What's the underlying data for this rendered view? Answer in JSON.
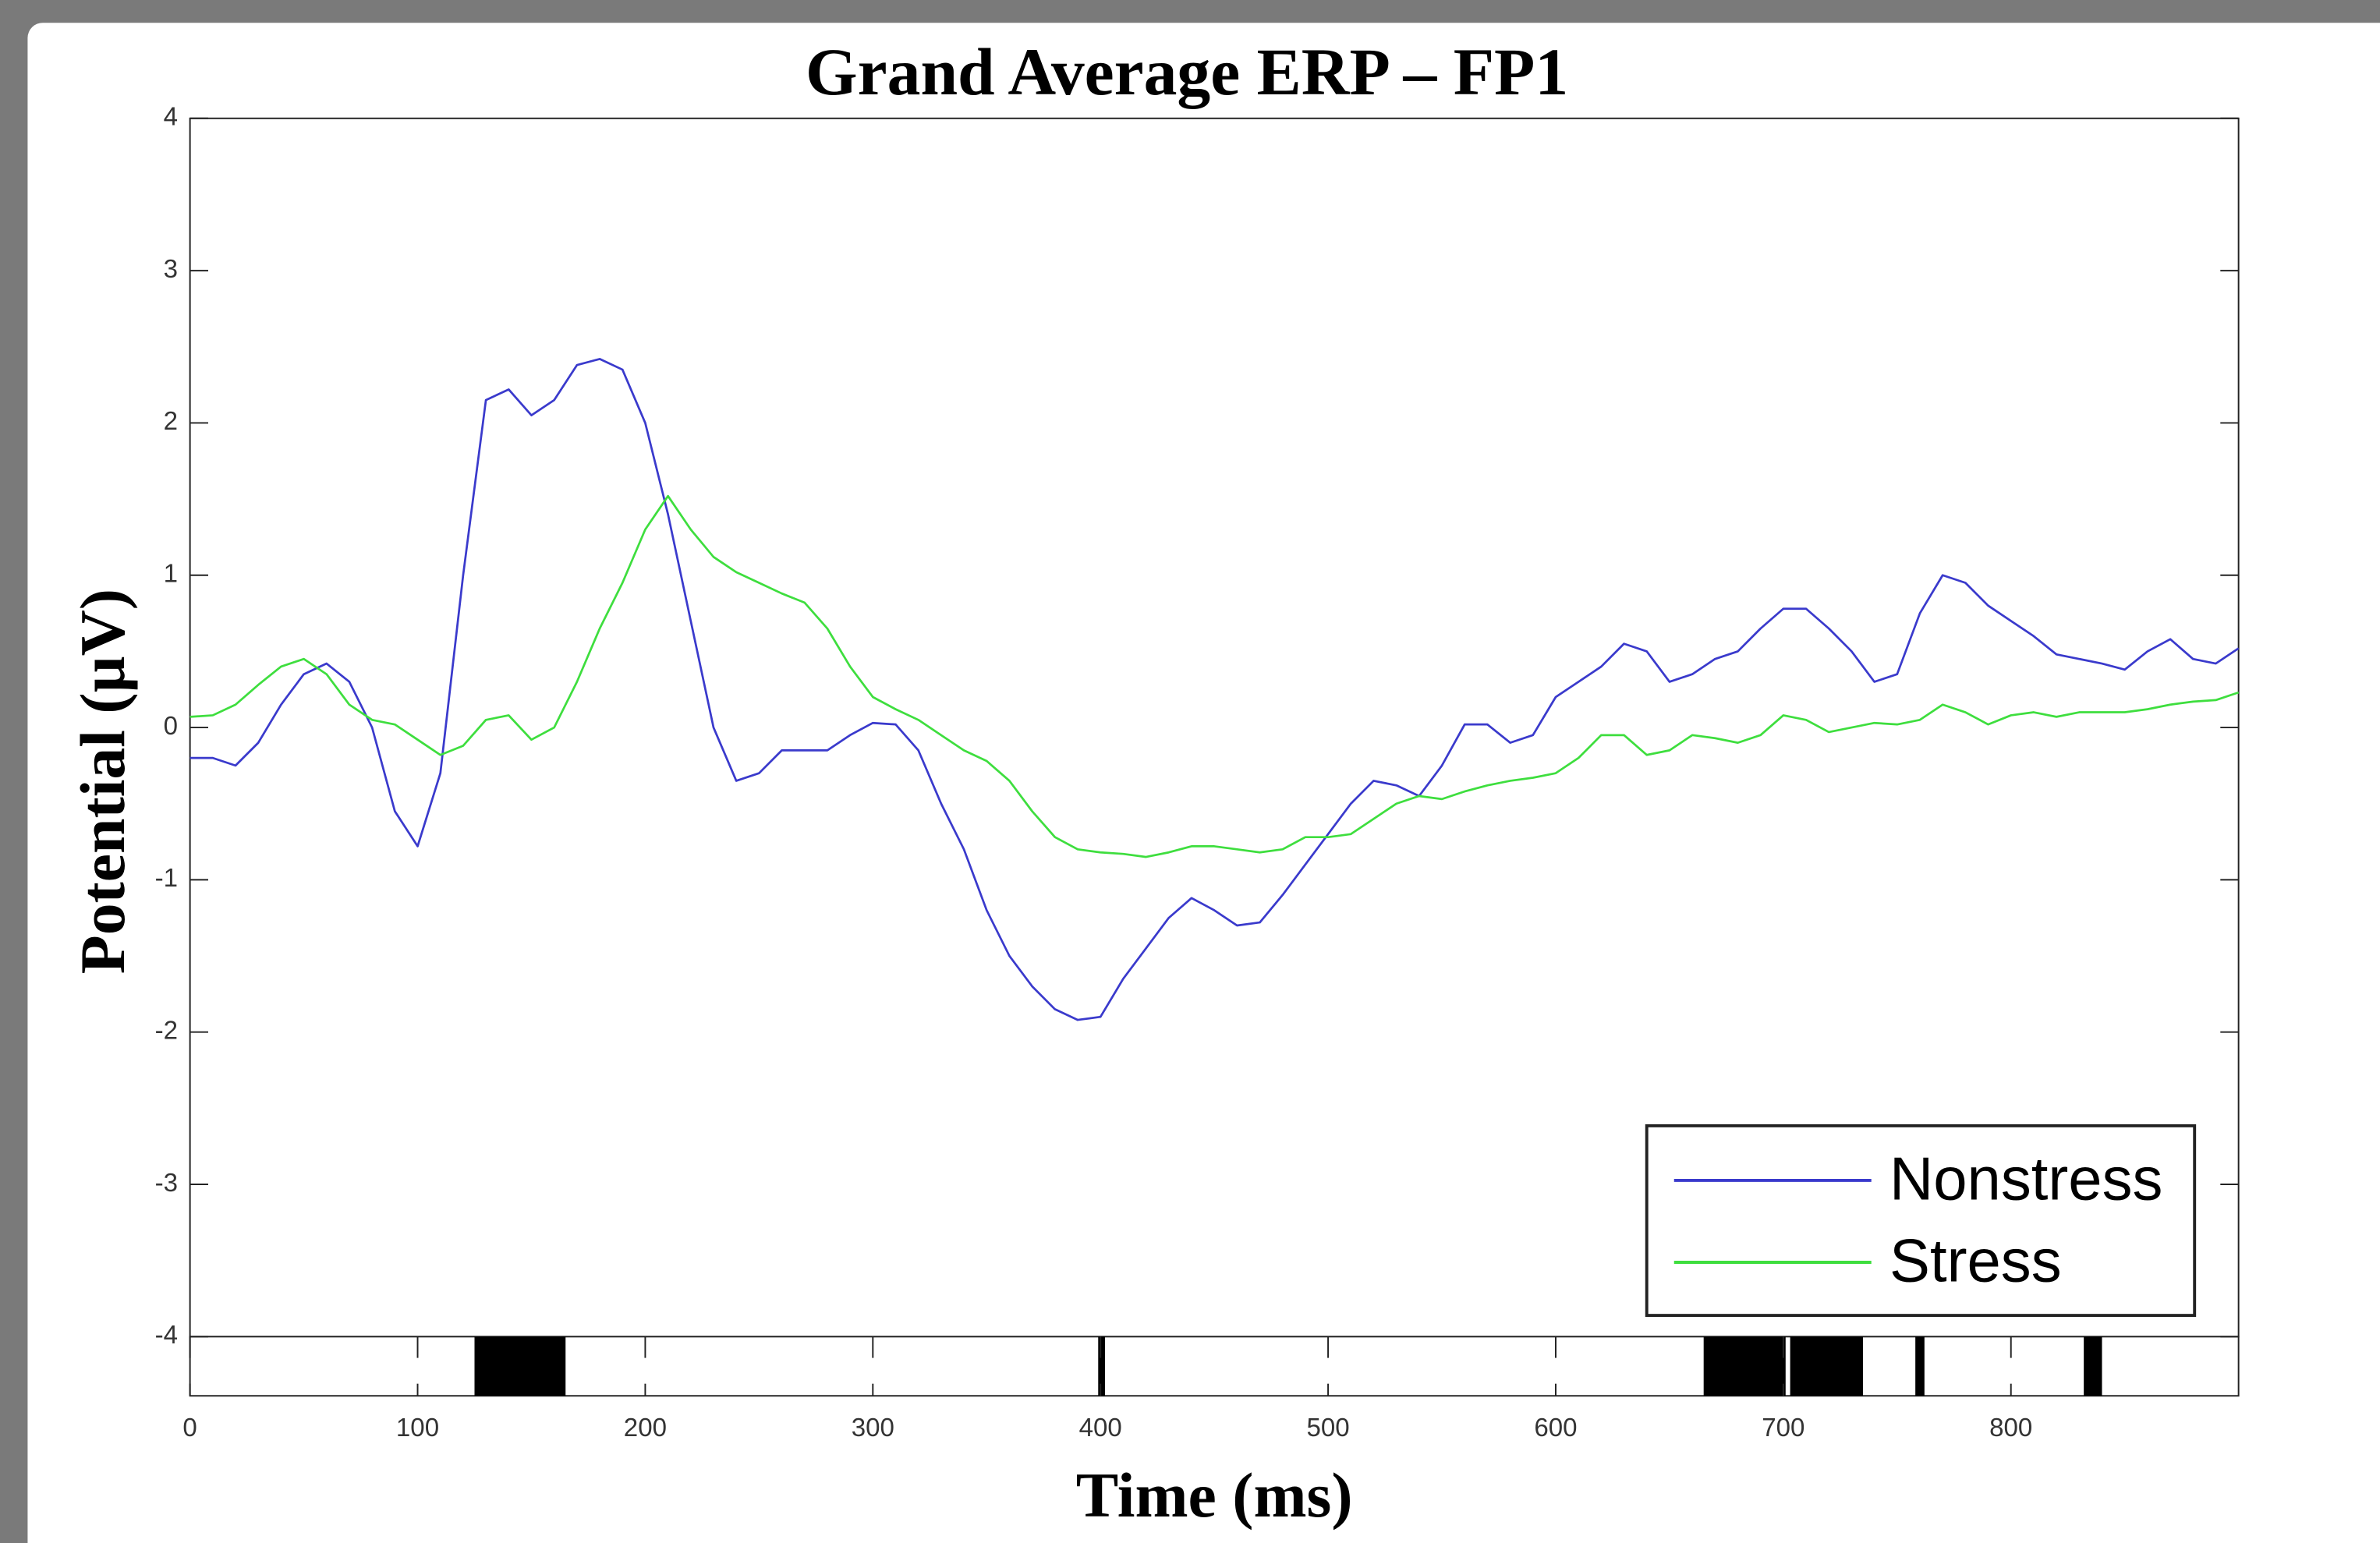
{
  "chart_data": {
    "type": "line",
    "title": "Grand Average ERP – FP1",
    "x_label": "Time (ms)",
    "y_label": "Potential (µV)",
    "x": [
      0,
      10,
      20,
      30,
      40,
      50,
      60,
      70,
      80,
      90,
      100,
      110,
      120,
      130,
      140,
      150,
      160,
      170,
      180,
      190,
      200,
      210,
      220,
      230,
      240,
      250,
      260,
      270,
      280,
      290,
      300,
      310,
      320,
      330,
      340,
      350,
      360,
      370,
      380,
      390,
      400,
      410,
      420,
      430,
      440,
      450,
      460,
      470,
      480,
      490,
      500,
      510,
      520,
      530,
      540,
      550,
      560,
      570,
      580,
      590,
      600,
      610,
      620,
      630,
      640,
      650,
      660,
      670,
      680,
      690,
      700,
      710,
      720,
      730,
      740,
      750,
      760,
      770,
      780,
      790,
      800,
      810,
      820,
      830,
      840,
      850,
      860,
      870,
      880,
      890,
      900
    ],
    "series": [
      {
        "name": "Nonstress",
        "color": "#3a3acc",
        "values": [
          -0.2,
          -0.2,
          -0.25,
          -0.1,
          0.15,
          0.35,
          0.42,
          0.3,
          0.0,
          -0.55,
          -0.78,
          -0.3,
          1.0,
          2.15,
          2.22,
          2.05,
          2.15,
          2.38,
          2.42,
          2.35,
          2.0,
          1.4,
          0.7,
          0.0,
          -0.35,
          -0.3,
          -0.15,
          -0.15,
          -0.15,
          -0.05,
          0.03,
          0.02,
          -0.15,
          -0.5,
          -0.8,
          -1.2,
          -1.5,
          -1.7,
          -1.85,
          -1.92,
          -1.9,
          -1.65,
          -1.45,
          -1.25,
          -1.12,
          -1.2,
          -1.3,
          -1.28,
          -1.1,
          -0.9,
          -0.7,
          -0.5,
          -0.35,
          -0.38,
          -0.45,
          -0.25,
          0.02,
          0.02,
          -0.1,
          -0.05,
          0.2,
          0.3,
          0.4,
          0.55,
          0.5,
          0.3,
          0.35,
          0.45,
          0.5,
          0.65,
          0.78,
          0.78,
          0.65,
          0.5,
          0.3,
          0.35,
          0.75,
          1.0,
          0.95,
          0.8,
          0.7,
          0.6,
          0.48,
          0.45,
          0.42,
          0.38,
          0.5,
          0.58,
          0.45,
          0.42,
          0.52
        ]
      },
      {
        "name": "Stress",
        "color": "#3ede3e",
        "values": [
          0.07,
          0.08,
          0.15,
          0.28,
          0.4,
          0.45,
          0.35,
          0.15,
          0.05,
          0.02,
          -0.08,
          -0.18,
          -0.12,
          0.05,
          0.08,
          -0.08,
          0.0,
          0.3,
          0.65,
          0.95,
          1.3,
          1.52,
          1.3,
          1.12,
          1.02,
          0.95,
          0.88,
          0.82,
          0.65,
          0.4,
          0.2,
          0.12,
          0.05,
          -0.05,
          -0.15,
          -0.22,
          -0.35,
          -0.55,
          -0.72,
          -0.8,
          -0.82,
          -0.83,
          -0.85,
          -0.82,
          -0.78,
          -0.78,
          -0.8,
          -0.82,
          -0.8,
          -0.72,
          -0.72,
          -0.7,
          -0.6,
          -0.5,
          -0.45,
          -0.47,
          -0.42,
          -0.38,
          -0.35,
          -0.33,
          -0.3,
          -0.2,
          -0.05,
          -0.05,
          -0.18,
          -0.15,
          -0.05,
          -0.07,
          -0.1,
          -0.05,
          0.08,
          0.05,
          -0.03,
          0.0,
          0.03,
          0.02,
          0.05,
          0.15,
          0.1,
          0.02,
          0.08,
          0.1,
          0.07,
          0.1,
          0.1,
          0.1,
          0.12,
          0.15,
          0.17,
          0.18,
          0.23
        ]
      }
    ],
    "significant_intervals": [
      [
        125,
        165
      ],
      [
        399,
        402
      ],
      [
        665,
        701
      ],
      [
        703,
        735
      ],
      [
        758,
        762
      ],
      [
        832,
        840
      ]
    ],
    "xlim": [
      0,
      900
    ],
    "xticks": [
      0,
      100,
      200,
      300,
      400,
      500,
      600,
      700,
      800
    ],
    "ylim": [
      -4,
      4
    ],
    "yticks": [
      -4,
      -3,
      -2,
      -1,
      0,
      1,
      2,
      3,
      4
    ],
    "legend": "lower right",
    "grid": false
  }
}
